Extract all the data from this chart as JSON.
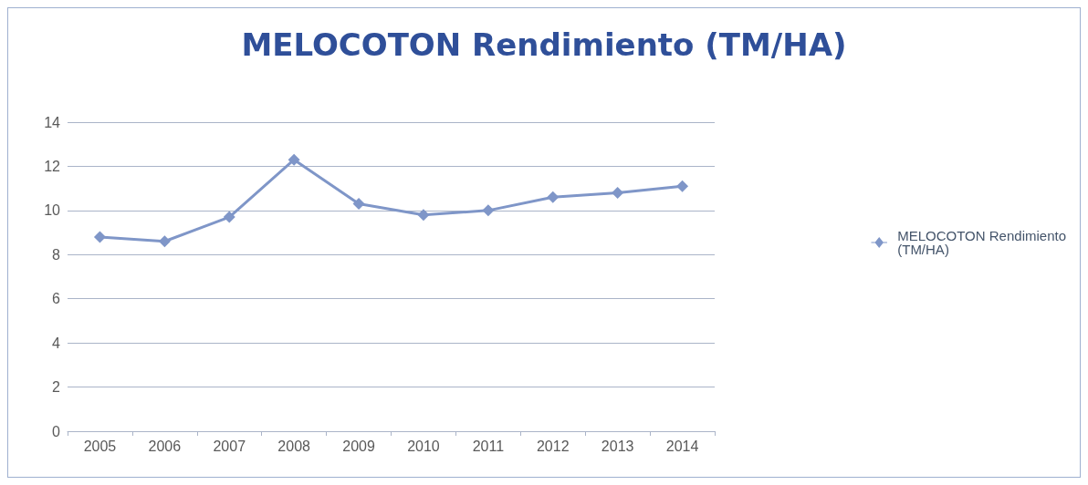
{
  "chart_data": {
    "type": "line",
    "title": "MELOCOTON Rendimiento (TM/HA)",
    "categories": [
      "2005",
      "2006",
      "2007",
      "2008",
      "2009",
      "2010",
      "2011",
      "2012",
      "2013",
      "2014"
    ],
    "series": [
      {
        "name": "MELOCOTON Rendimiento (TM/HA)",
        "color": "#7f96c8",
        "values": [
          8.8,
          8.6,
          9.7,
          12.3,
          10.3,
          9.8,
          10.0,
          10.6,
          10.8,
          11.1
        ]
      }
    ],
    "ylim": [
      0,
      14
    ],
    "yticks": [
      0,
      2,
      4,
      6,
      8,
      10,
      12,
      14
    ],
    "grid": "y",
    "legend": "right",
    "marker": "diamond",
    "line_style": "solid"
  }
}
